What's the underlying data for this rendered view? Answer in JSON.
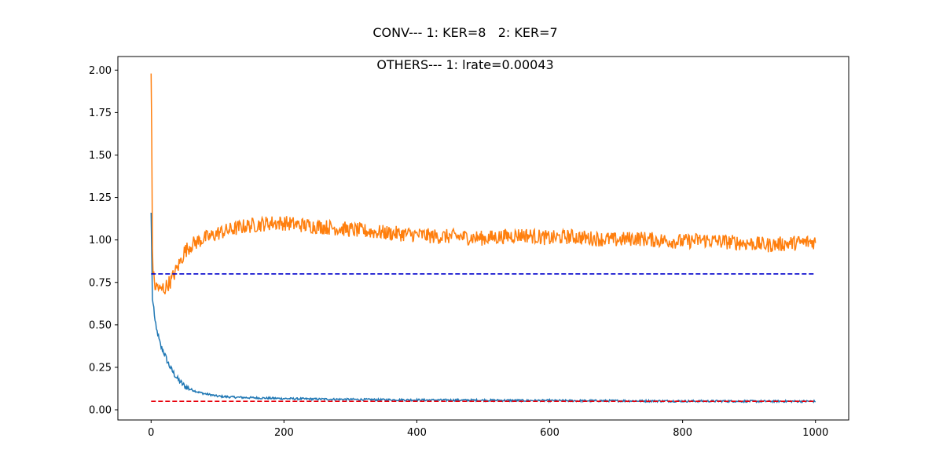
{
  "figure": {
    "title": "CONV--- 1: KER=8   2: KER=7",
    "subtitle": "OTHERS--- 1: lrate=0.00043"
  },
  "chart_data": {
    "type": "line",
    "title": "CONV--- 1: KER=8   2: KER=7",
    "subtitle": "OTHERS--- 1: lrate=0.00043",
    "xlabel": "",
    "ylabel": "",
    "xlim": [
      -50,
      1050
    ],
    "ylim": [
      -0.06,
      2.08
    ],
    "xticks": [
      0,
      200,
      400,
      600,
      800,
      1000
    ],
    "yticks": [
      0.0,
      0.25,
      0.5,
      0.75,
      1.0,
      1.25,
      1.5,
      1.75,
      2.0
    ],
    "xtick_labels": [
      "0",
      "200",
      "400",
      "600",
      "800",
      "1000"
    ],
    "ytick_labels": [
      "0.00",
      "0.25",
      "0.50",
      "0.75",
      "1.00",
      "1.25",
      "1.50",
      "1.75",
      "2.00"
    ],
    "grid": false,
    "legend": "none",
    "series": [
      {
        "color": "#1f77b4",
        "style": "solid",
        "x": [
          0,
          2,
          4,
          6,
          8,
          10,
          12,
          15,
          18,
          20,
          25,
          30,
          35,
          40,
          45,
          50,
          60,
          70,
          80,
          90,
          100,
          120,
          140,
          160,
          180,
          200,
          250,
          300,
          350,
          400,
          450,
          500,
          550,
          600,
          650,
          700,
          750,
          800,
          850,
          900,
          950,
          1000
        ],
        "y": [
          1.16,
          0.65,
          0.6,
          0.52,
          0.47,
          0.45,
          0.41,
          0.37,
          0.35,
          0.33,
          0.28,
          0.24,
          0.21,
          0.18,
          0.16,
          0.14,
          0.12,
          0.105,
          0.095,
          0.088,
          0.08,
          0.075,
          0.072,
          0.07,
          0.068,
          0.066,
          0.063,
          0.061,
          0.059,
          0.058,
          0.057,
          0.056,
          0.055,
          0.054,
          0.053,
          0.053,
          0.052,
          0.051,
          0.051,
          0.05,
          0.05,
          0.05
        ]
      },
      {
        "color": "#ff7f0e",
        "style": "solid",
        "x": [
          0,
          1,
          2,
          3,
          5,
          7,
          10,
          12,
          15,
          18,
          20,
          25,
          30,
          35,
          40,
          45,
          50,
          60,
          70,
          80,
          90,
          100,
          120,
          140,
          160,
          180,
          200,
          220,
          250,
          280,
          300,
          330,
          360,
          400,
          430,
          460,
          500,
          530,
          560,
          600,
          630,
          660,
          700,
          730,
          760,
          800,
          830,
          860,
          900,
          930,
          960,
          1000
        ],
        "y": [
          1.98,
          1.6,
          0.95,
          0.8,
          0.75,
          0.72,
          0.73,
          0.71,
          0.7,
          0.72,
          0.71,
          0.74,
          0.76,
          0.8,
          0.84,
          0.88,
          0.93,
          0.97,
          0.99,
          1.01,
          1.02,
          1.04,
          1.06,
          1.08,
          1.09,
          1.1,
          1.1,
          1.09,
          1.08,
          1.07,
          1.06,
          1.05,
          1.04,
          1.03,
          1.02,
          1.02,
          1.01,
          1.02,
          1.03,
          1.01,
          1.02,
          1.01,
          1.0,
          1.01,
          1.0,
          0.99,
          1.0,
          0.99,
          0.98,
          0.97,
          0.98,
          0.99
        ]
      },
      {
        "color": "#0000cc",
        "style": "dashed",
        "x": [
          0,
          1000
        ],
        "y": [
          0.8,
          0.8
        ]
      },
      {
        "color": "#e8000b",
        "style": "dashed",
        "x": [
          0,
          1000
        ],
        "y": [
          0.05,
          0.05
        ]
      }
    ]
  }
}
